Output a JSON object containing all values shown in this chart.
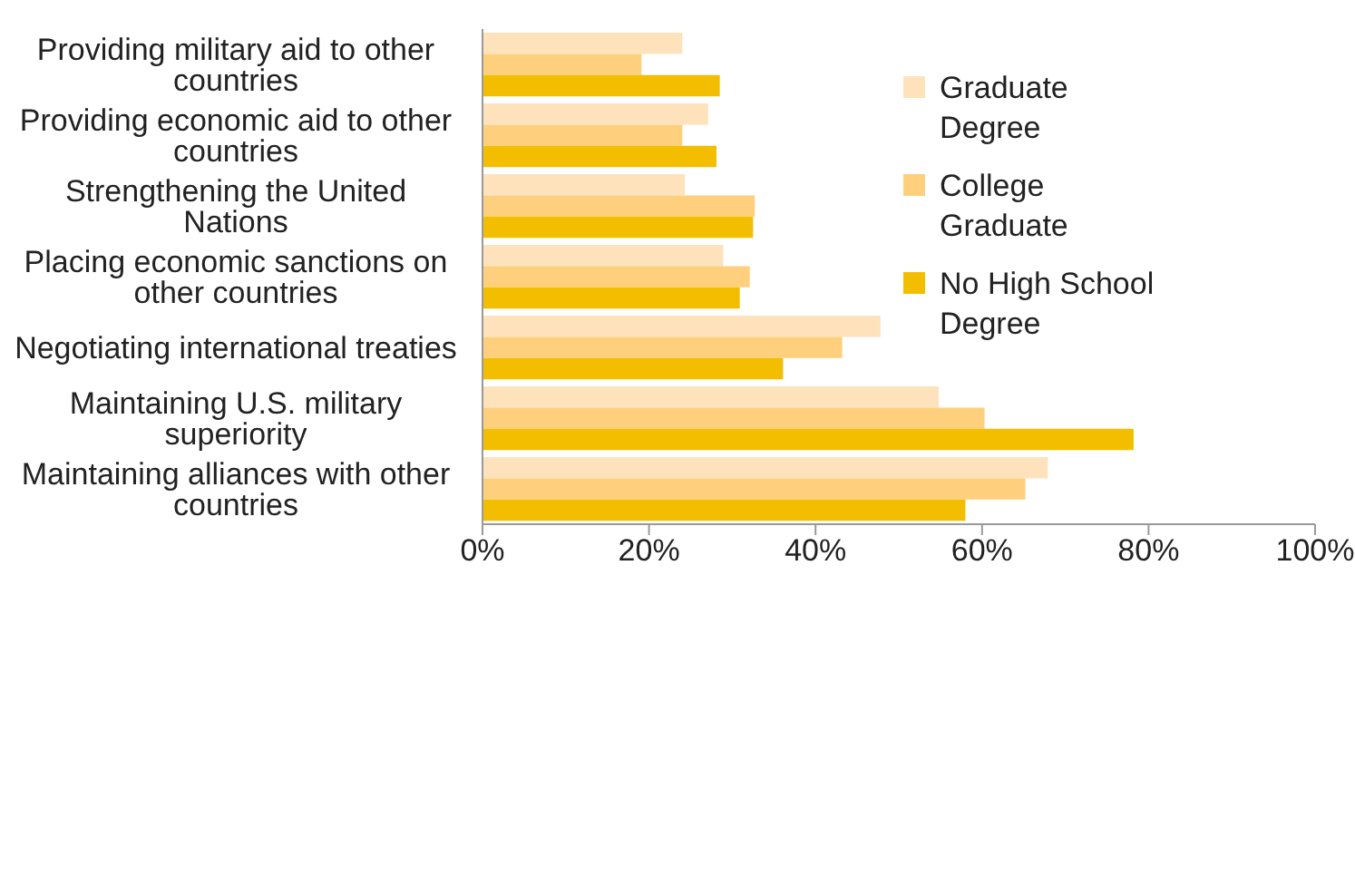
{
  "chart_data": {
    "type": "bar",
    "orientation": "horizontal",
    "categories": [
      "Providing military aid to other countries",
      "Providing economic aid to other countries",
      "Strengthening the United Nations",
      "Placing economic sanctions on other countries",
      "Negotiating international treaties",
      "Maintaining U.S. military superiority",
      "Maintaining alliances with other countries"
    ],
    "series": [
      {
        "name": "Graduate Degree",
        "color": "#fde2bc",
        "values": [
          24.0,
          27.1,
          24.3,
          28.9,
          47.8,
          54.8,
          67.9
        ]
      },
      {
        "name": "College Graduate",
        "color": "#fecf7c",
        "values": [
          19.1,
          24.0,
          32.7,
          32.1,
          43.2,
          60.3,
          65.2
        ]
      },
      {
        "name": "No High School Degree",
        "color": "#f4be00",
        "values": [
          28.5,
          28.1,
          32.5,
          30.9,
          36.1,
          78.2,
          58.0
        ]
      }
    ],
    "xlim": [
      0,
      100
    ],
    "xticks": [
      {
        "value": 0,
        "label": "0%"
      },
      {
        "value": 20,
        "label": "20%"
      },
      {
        "value": 40,
        "label": "40%"
      },
      {
        "value": 60,
        "label": "60%"
      },
      {
        "value": 80,
        "label": "80%"
      },
      {
        "value": 100,
        "label": "100%"
      }
    ],
    "grid": false,
    "legend": "top right"
  }
}
